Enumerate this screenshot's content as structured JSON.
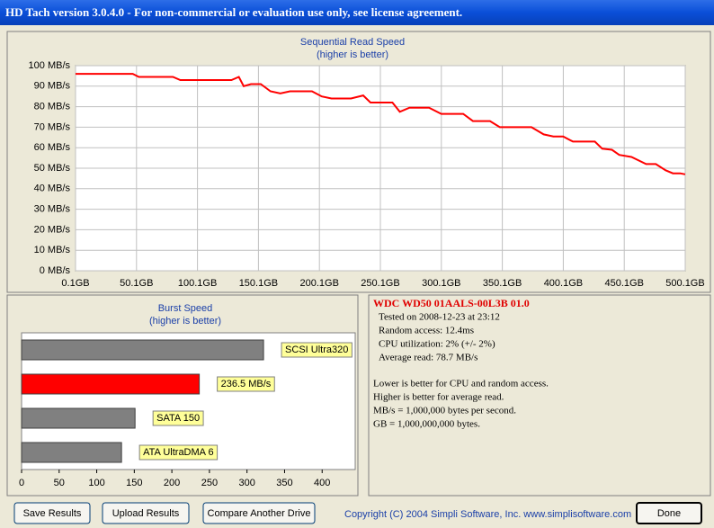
{
  "window": {
    "title": "HD Tach version 3.0.4.0  - For non-commercial or evaluation use only, see license agreement."
  },
  "chart_data": [
    {
      "type": "line",
      "title": "Sequential Read Speed",
      "subtitle": "(higher is better)",
      "x": [
        0.1,
        47,
        52,
        80,
        86,
        128,
        134,
        138,
        144,
        152,
        160,
        168,
        176,
        194,
        202,
        210,
        226,
        236,
        242,
        260,
        266,
        274,
        290,
        300,
        318,
        326,
        340,
        348,
        374,
        384,
        392,
        400,
        408,
        426,
        432,
        440,
        446,
        456,
        468,
        476,
        484,
        490,
        496,
        500
      ],
      "series": [
        {
          "name": "Read",
          "color": "#ff0000",
          "values": [
            96,
            96,
            94.5,
            94.5,
            93,
            93,
            94.5,
            90,
            91,
            91,
            87.5,
            86.5,
            87.5,
            87.5,
            85,
            84,
            84,
            85.5,
            82,
            82,
            77.5,
            79.5,
            79.5,
            76.5,
            76.5,
            73,
            73,
            70,
            70,
            66.5,
            65.5,
            65.5,
            63,
            63,
            59.5,
            59,
            56.5,
            55.5,
            52,
            52,
            49,
            47.5,
            47.5,
            47
          ]
        }
      ],
      "xlim": [
        0.1,
        500.1
      ],
      "xticks": [
        {
          "value": 0.1,
          "label": "0.1GB"
        },
        {
          "value": 50.1,
          "label": "50.1GB"
        },
        {
          "value": 100.1,
          "label": "100.1GB"
        },
        {
          "value": 150.1,
          "label": "150.1GB"
        },
        {
          "value": 200.1,
          "label": "200.1GB"
        },
        {
          "value": 250.1,
          "label": "250.1GB"
        },
        {
          "value": 300.1,
          "label": "300.1GB"
        },
        {
          "value": 350.1,
          "label": "350.1GB"
        },
        {
          "value": 400.1,
          "label": "400.1GB"
        },
        {
          "value": 450.1,
          "label": "450.1GB"
        },
        {
          "value": 500.1,
          "label": "500.1GB"
        }
      ],
      "ylim": [
        0,
        100
      ],
      "yticks": [
        {
          "value": 0,
          "label": "0 MB/s"
        },
        {
          "value": 10,
          "label": "10 MB/s"
        },
        {
          "value": 20,
          "label": "20 MB/s"
        },
        {
          "value": 30,
          "label": "30 MB/s"
        },
        {
          "value": 40,
          "label": "40 MB/s"
        },
        {
          "value": 50,
          "label": "50 MB/s"
        },
        {
          "value": 60,
          "label": "60 MB/s"
        },
        {
          "value": 70,
          "label": "70 MB/s"
        },
        {
          "value": 80,
          "label": "80 MB/s"
        },
        {
          "value": 90,
          "label": "90 MB/s"
        },
        {
          "value": 100,
          "label": "100 MB/s"
        }
      ],
      "grid": true
    },
    {
      "type": "hbar",
      "title": "Burst Speed",
      "subtitle": "(higher is better)",
      "categories": [
        "SCSI Ultra320",
        null,
        "SATA 150",
        "ATA UltraDMA 6"
      ],
      "values": [
        322,
        236.5,
        151,
        133
      ],
      "value_labels": [
        null,
        "236.5 MB/s",
        null,
        null
      ],
      "colors": [
        "#808080",
        "#ff0000",
        "#808080",
        "#808080"
      ],
      "xlim": [
        0,
        444
      ],
      "xticks": [
        0,
        50,
        100,
        150,
        200,
        250,
        300,
        350,
        400
      ]
    }
  ],
  "info": {
    "drive": "WDC WD50 01AALS-00L3B 01.0",
    "lines": [
      "Tested on 2008-12-23 at 23:12",
      "Random access: 12.4ms",
      "CPU utilization: 2% (+/- 2%)",
      "Average read: 78.7 MB/s"
    ],
    "notes": [
      "Lower is better for CPU and random access.",
      "Higher is better for average read.",
      "MB/s = 1,000,000 bytes per second.",
      "GB = 1,000,000,000 bytes."
    ]
  },
  "buttons": [
    "Save Results",
    "Upload Results",
    "Compare Another Drive",
    "Done"
  ],
  "copyright": "Copyright (C) 2004 Simpli Software, Inc. www.simplisoftware.com"
}
